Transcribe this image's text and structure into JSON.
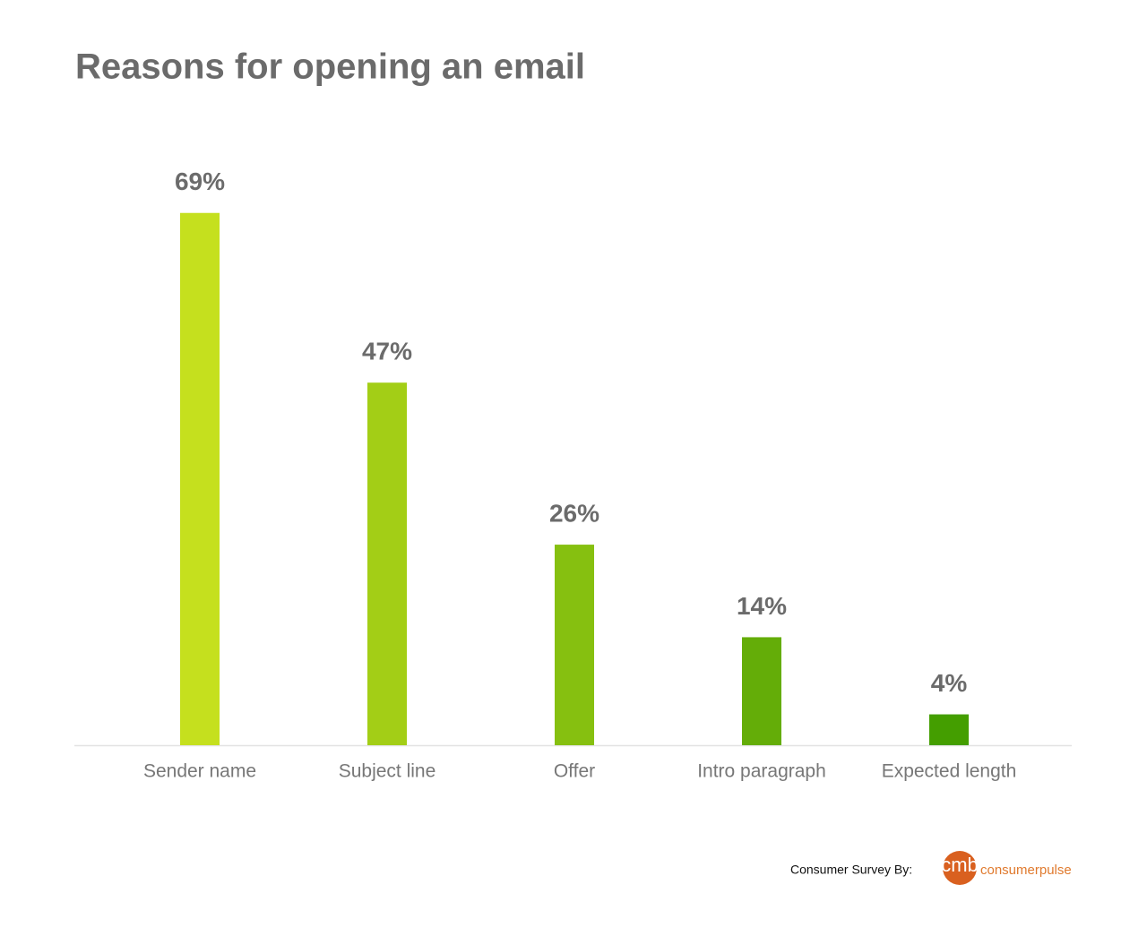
{
  "chart_data": {
    "type": "bar",
    "title": "Reasons for opening an email",
    "categories": [
      "Sender name",
      "Subject line",
      "Offer",
      "Intro paragraph",
      "Expected length"
    ],
    "values": [
      69,
      47,
      26,
      14,
      4
    ],
    "value_labels": [
      "69%",
      "47%",
      "26%",
      "14%",
      "4%"
    ],
    "colors": [
      "#c5e01e",
      "#a3ce16",
      "#86c010",
      "#64ad08",
      "#449e00"
    ],
    "ylim": [
      0,
      80
    ],
    "grid": false,
    "source": "Consumer Survey By:",
    "logo": {
      "mark": "cmb",
      "text": "consumerpulse"
    }
  }
}
